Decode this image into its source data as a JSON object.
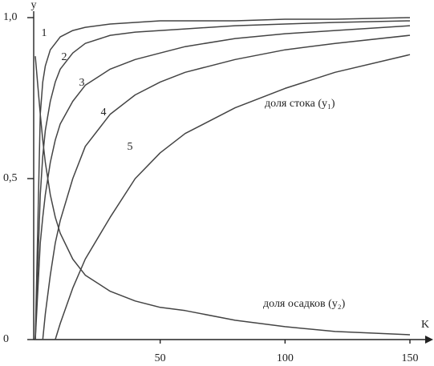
{
  "chart_data": {
    "type": "line",
    "x_label": "K",
    "y_label": "y",
    "x": [
      0,
      2,
      3,
      4,
      6,
      8,
      10,
      15,
      20,
      30,
      40,
      50,
      60,
      80,
      100,
      120,
      150
    ],
    "series": [
      {
        "name": "1",
        "color": "#444444",
        "values": [
          0,
          0.7,
          0.8,
          0.85,
          0.9,
          0.92,
          0.94,
          0.96,
          0.97,
          0.98,
          0.985,
          0.99,
          0.99,
          0.99,
          0.995,
          0.995,
          1.0
        ]
      },
      {
        "name": "2",
        "color": "#444444",
        "values": [
          0,
          0.45,
          0.57,
          0.65,
          0.74,
          0.8,
          0.84,
          0.89,
          0.92,
          0.945,
          0.955,
          0.96,
          0.965,
          0.975,
          0.98,
          0.985,
          0.99
        ]
      },
      {
        "name": "3",
        "color": "#444444",
        "values": [
          0,
          0.3,
          0.38,
          0.45,
          0.55,
          0.62,
          0.67,
          0.74,
          0.79,
          0.84,
          0.87,
          0.89,
          0.91,
          0.935,
          0.95,
          0.96,
          0.975
        ]
      },
      {
        "name": "4",
        "color": "#444444",
        "values": [
          null,
          null,
          0,
          0.08,
          0.2,
          0.3,
          0.37,
          0.5,
          0.6,
          0.7,
          0.76,
          0.8,
          0.83,
          0.87,
          0.9,
          0.92,
          0.945
        ]
      },
      {
        "name": "5",
        "color": "#444444",
        "values": [
          null,
          null,
          null,
          null,
          null,
          0,
          0.05,
          0.16,
          0.25,
          0.38,
          0.5,
          0.58,
          0.64,
          0.72,
          0.78,
          0.83,
          0.885
        ]
      },
      {
        "color": "#444444",
        "values": [
          0.88,
          0.7,
          0.62,
          0.55,
          0.45,
          0.38,
          0.33,
          0.25,
          0.2,
          0.15,
          0.12,
          0.1,
          0.09,
          0.06,
          0.04,
          0.025,
          0.015
        ]
      }
    ],
    "annotations": [
      "доля стока (y₁)",
      "доля осадков (y₂)"
    ],
    "xlim": [
      0,
      150
    ],
    "xticks": [
      50,
      100,
      150
    ],
    "ylim": [
      0,
      1
    ],
    "yticks": [
      0,
      {
        "value": 0.5,
        "label": "0,5"
      },
      {
        "value": 1,
        "label": "1,0"
      }
    ]
  }
}
